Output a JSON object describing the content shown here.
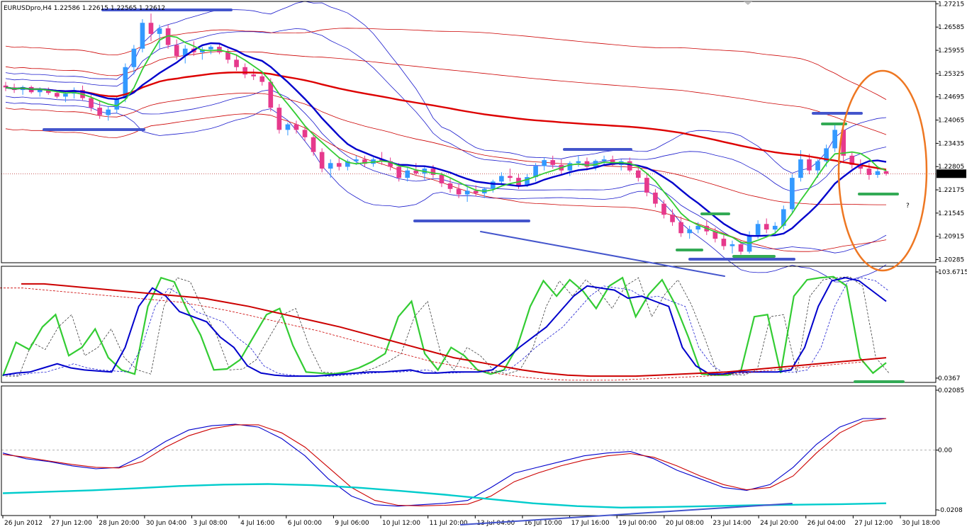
{
  "header": {
    "text": "EURUSDpro,H4  1.22586 1.22615 1.22565 1.22612"
  },
  "chart_data": [
    {
      "type": "candlestick",
      "name": "main",
      "yticks": [
        "1.27215",
        "1.26585",
        "1.25955",
        "1.25325",
        "1.24695",
        "1.24065",
        "1.23435",
        "1.22805",
        "1.22175",
        "1.21545",
        "1.20915",
        "1.20285"
      ],
      "ylim": [
        1.202,
        1.2728
      ],
      "current_price": "1.22612",
      "question_mark": "?",
      "candles": [
        [
          1.25,
          1.251,
          1.2485,
          1.2495
        ],
        [
          1.2495,
          1.2505,
          1.248,
          1.2488
        ],
        [
          1.2488,
          1.25,
          1.2475,
          1.2496
        ],
        [
          1.2496,
          1.25,
          1.2478,
          1.2482
        ],
        [
          1.2482,
          1.2495,
          1.247,
          1.249
        ],
        [
          1.249,
          1.2495,
          1.2475,
          1.248
        ],
        [
          1.248,
          1.2488,
          1.2465,
          1.247
        ],
        [
          1.247,
          1.2485,
          1.2455,
          1.2478
        ],
        [
          1.2478,
          1.2495,
          1.2465,
          1.2488
        ],
        [
          1.2488,
          1.25,
          1.246,
          1.2466
        ],
        [
          1.2466,
          1.2475,
          1.243,
          1.244
        ],
        [
          1.244,
          1.246,
          1.241,
          1.242
        ],
        [
          1.242,
          1.2445,
          1.2405,
          1.2435
        ],
        [
          1.2435,
          1.247,
          1.2425,
          1.2465
        ],
        [
          1.2465,
          1.256,
          1.2455,
          1.255
        ],
        [
          1.255,
          1.261,
          1.253,
          1.26
        ],
        [
          1.26,
          1.268,
          1.259,
          1.267
        ],
        [
          1.267,
          1.2695,
          1.262,
          1.264
        ],
        [
          1.264,
          1.2665,
          1.26,
          1.2655
        ],
        [
          1.2655,
          1.2665,
          1.26,
          1.261
        ],
        [
          1.261,
          1.2625,
          1.257,
          1.258
        ],
        [
          1.258,
          1.261,
          1.256,
          1.26
        ],
        [
          1.26,
          1.262,
          1.258,
          1.259
        ],
        [
          1.259,
          1.2605,
          1.257,
          1.2598
        ],
        [
          1.2598,
          1.261,
          1.2585,
          1.2605
        ],
        [
          1.2605,
          1.2615,
          1.2585,
          1.259
        ],
        [
          1.259,
          1.26,
          1.256,
          1.257
        ],
        [
          1.257,
          1.2585,
          1.254,
          1.255
        ],
        [
          1.255,
          1.256,
          1.252,
          1.253
        ],
        [
          1.253,
          1.2545,
          1.2515,
          1.2525
        ],
        [
          1.2525,
          1.2535,
          1.25,
          1.251
        ],
        [
          1.251,
          1.252,
          1.243,
          1.244
        ],
        [
          1.244,
          1.245,
          1.237,
          1.238
        ],
        [
          1.238,
          1.24,
          1.2365,
          1.2395
        ],
        [
          1.2395,
          1.2405,
          1.237,
          1.238
        ],
        [
          1.238,
          1.239,
          1.235,
          1.236
        ],
        [
          1.236,
          1.237,
          1.231,
          1.232
        ],
        [
          1.232,
          1.233,
          1.2265,
          1.2275
        ],
        [
          1.2275,
          1.23,
          1.225,
          1.229
        ],
        [
          1.229,
          1.2305,
          1.227,
          1.228
        ],
        [
          1.228,
          1.23,
          1.227,
          1.2295
        ],
        [
          1.2295,
          1.231,
          1.2285,
          1.23
        ],
        [
          1.23,
          1.231,
          1.228,
          1.2288
        ],
        [
          1.2288,
          1.2305,
          1.228,
          1.23
        ],
        [
          1.23,
          1.232,
          1.2285,
          1.2295
        ],
        [
          1.2295,
          1.2305,
          1.227,
          1.228
        ],
        [
          1.228,
          1.229,
          1.224,
          1.225
        ],
        [
          1.225,
          1.228,
          1.224,
          1.227
        ],
        [
          1.227,
          1.229,
          1.2255,
          1.2262
        ],
        [
          1.2262,
          1.228,
          1.2245,
          1.2275
        ],
        [
          1.2275,
          1.2285,
          1.225,
          1.2258
        ],
        [
          1.2258,
          1.2265,
          1.2225,
          1.2235
        ],
        [
          1.2235,
          1.225,
          1.221,
          1.222
        ],
        [
          1.222,
          1.2235,
          1.2195,
          1.2205
        ],
        [
          1.2205,
          1.2225,
          1.2185,
          1.2215
        ],
        [
          1.2215,
          1.223,
          1.22,
          1.2208
        ],
        [
          1.2208,
          1.2225,
          1.2195,
          1.222
        ],
        [
          1.222,
          1.2245,
          1.221,
          1.224
        ],
        [
          1.224,
          1.2265,
          1.223,
          1.2255
        ],
        [
          1.2255,
          1.2275,
          1.224,
          1.225
        ],
        [
          1.225,
          1.226,
          1.222,
          1.223
        ],
        [
          1.223,
          1.226,
          1.2225,
          1.2252
        ],
        [
          1.2252,
          1.229,
          1.224,
          1.2282
        ],
        [
          1.2282,
          1.2305,
          1.227,
          1.2298
        ],
        [
          1.2298,
          1.231,
          1.2275,
          1.2285
        ],
        [
          1.2285,
          1.23,
          1.226,
          1.227
        ],
        [
          1.227,
          1.2295,
          1.2255,
          1.229
        ],
        [
          1.229,
          1.231,
          1.228,
          1.2295
        ],
        [
          1.2295,
          1.2305,
          1.227,
          1.228
        ],
        [
          1.228,
          1.23,
          1.227,
          1.2296
        ],
        [
          1.2296,
          1.231,
          1.2285,
          1.23
        ],
        [
          1.23,
          1.231,
          1.228,
          1.2285
        ],
        [
          1.2285,
          1.23,
          1.227,
          1.2295
        ],
        [
          1.2295,
          1.2305,
          1.2265,
          1.227
        ],
        [
          1.227,
          1.228,
          1.224,
          1.225
        ],
        [
          1.225,
          1.226,
          1.22,
          1.221
        ],
        [
          1.221,
          1.222,
          1.217,
          1.218
        ],
        [
          1.218,
          1.219,
          1.214,
          1.215
        ],
        [
          1.215,
          1.2165,
          1.212,
          1.213
        ],
        [
          1.213,
          1.2145,
          1.209,
          1.21
        ],
        [
          1.21,
          1.212,
          1.2085,
          1.211
        ],
        [
          1.211,
          1.213,
          1.21,
          1.212
        ],
        [
          1.212,
          1.2135,
          1.2095,
          1.2105
        ],
        [
          1.2105,
          1.2115,
          1.2075,
          1.2085
        ],
        [
          1.2085,
          1.2095,
          1.2055,
          1.2065
        ],
        [
          1.2065,
          1.208,
          1.2045,
          1.207
        ],
        [
          1.207,
          1.208,
          1.2042,
          1.205
        ],
        [
          1.205,
          1.2105,
          1.2045,
          1.2095
        ],
        [
          1.2095,
          1.2135,
          1.2085,
          1.2125
        ],
        [
          1.2125,
          1.214,
          1.21,
          1.211
        ],
        [
          1.211,
          1.213,
          1.2095,
          1.212
        ],
        [
          1.212,
          1.2175,
          1.211,
          1.2165
        ],
        [
          1.2165,
          1.226,
          1.2155,
          1.225
        ],
        [
          1.225,
          1.2325,
          1.224,
          1.23
        ],
        [
          1.23,
          1.2315,
          1.226,
          1.227
        ],
        [
          1.227,
          1.23,
          1.225,
          1.2295
        ],
        [
          1.2295,
          1.234,
          1.228,
          1.233
        ],
        [
          1.233,
          1.2395,
          1.232,
          1.238
        ],
        [
          1.238,
          1.2385,
          1.229,
          1.231
        ],
        [
          1.231,
          1.232,
          1.2275,
          1.2285
        ],
        [
          1.2285,
          1.23,
          1.226,
          1.2275
        ],
        [
          1.2275,
          1.229,
          1.2245,
          1.2258
        ],
        [
          1.2258,
          1.2275,
          1.225,
          1.2268
        ],
        [
          1.2268,
          1.227,
          1.2256,
          1.2261
        ]
      ],
      "time_labels": [
        "26 Jun 2012",
        "27 Jun 12:00",
        "28 Jun 20:00",
        "30 Jun 04:00",
        "3 Jul 08:00",
        "4 Jul 16:00",
        "6 Jul 00:00",
        "9 Jul 06:00",
        "10 Jul 12:00",
        "11 Jul 20:00",
        "13 Jul 04:00",
        "16 Jul 10:00",
        "17 Jul 16:00",
        "19 Jul 00:00",
        "20 Jul 08:00",
        "23 Jul 14:00",
        "24 Jul 20:00",
        "26 Jul 04:00",
        "27 Jul 12:00",
        "30 Jul 18:00"
      ]
    },
    {
      "type": "line",
      "name": "stochastic",
      "yticks": [
        "103.6715",
        "0.0367"
      ],
      "ylim": [
        0,
        103.67
      ],
      "series": [
        {
          "color": "#33cc33",
          "values": [
            2,
            35,
            28,
            50,
            62,
            22,
            30,
            48,
            20,
            8,
            4,
            70,
            98,
            94,
            66,
            42,
            8,
            9,
            18,
            40,
            62,
            68,
            32,
            6,
            5,
            4,
            6,
            10,
            16,
            24,
            60,
            75,
            24,
            8,
            30,
            22,
            8,
            4,
            8,
            30,
            70,
            95,
            80,
            96,
            85,
            68,
            90,
            98,
            60,
            82,
            96,
            72,
            40,
            4,
            3,
            3,
            8,
            60,
            62,
            5,
            80,
            96,
            98,
            99,
            90,
            20,
            5,
            15
          ]
        },
        {
          "color": "#0000cc",
          "values": [
            3,
            5,
            6,
            10,
            14,
            10,
            8,
            7,
            6,
            30,
            70,
            88,
            80,
            65,
            60,
            55,
            40,
            30,
            12,
            5,
            3,
            2,
            2,
            2,
            3,
            4,
            5,
            6,
            6,
            7,
            8,
            5,
            5,
            6,
            6,
            6,
            8,
            18,
            30,
            40,
            50,
            65,
            80,
            90,
            88,
            86,
            78,
            80,
            75,
            70,
            30,
            12,
            4,
            4,
            6,
            6,
            6,
            6,
            8,
            30,
            70,
            95,
            98,
            95,
            85,
            75
          ]
        },
        {
          "color": "#cc0000",
          "values": [
            92,
            92,
            90,
            88,
            86,
            84,
            82,
            80,
            78,
            74,
            70,
            65,
            60,
            55,
            50,
            44,
            38,
            32,
            26,
            20,
            16,
            12,
            8,
            5,
            3,
            2,
            2,
            2,
            3,
            4,
            5,
            6,
            8,
            10,
            12,
            14,
            16,
            18,
            20
          ]
        }
      ]
    },
    {
      "type": "line",
      "name": "oscillator",
      "yticks": [
        "0.02085",
        "0.00",
        "-0.0208"
      ],
      "ylim": [
        -0.0208,
        0.02085
      ],
      "series": [
        {
          "color": "#0000cc",
          "values": [
            -0.001,
            -0.003,
            -0.004,
            -0.0055,
            -0.0065,
            -0.006,
            -0.002,
            0.003,
            0.007,
            0.0085,
            0.009,
            0.008,
            0.004,
            -0.002,
            -0.01,
            -0.016,
            -0.019,
            -0.0195,
            -0.019,
            -0.0185,
            -0.0175,
            -0.013,
            -0.008,
            -0.006,
            -0.004,
            -0.002,
            -0.001,
            -0.0005,
            -0.003,
            -0.007,
            -0.01,
            -0.013,
            -0.014,
            -0.012,
            -0.006,
            0.002,
            0.008,
            0.011,
            0.011
          ]
        },
        {
          "color": "#cc0000",
          "values": [
            -0.0015,
            -0.0025,
            -0.0038,
            -0.005,
            -0.006,
            -0.0062,
            -0.004,
            0.001,
            0.005,
            0.0075,
            0.0088,
            0.0088,
            0.006,
            0.001,
            -0.006,
            -0.013,
            -0.0175,
            -0.0192,
            -0.0194,
            -0.0192,
            -0.0188,
            -0.016,
            -0.011,
            -0.008,
            -0.0055,
            -0.0035,
            -0.002,
            -0.0012,
            -0.0025,
            -0.0055,
            -0.009,
            -0.012,
            -0.0138,
            -0.013,
            -0.009,
            -0.001,
            0.006,
            0.01,
            0.011
          ]
        },
        {
          "color": "#00cccc",
          "values": [
            -0.015,
            -0.0145,
            -0.014,
            -0.0133,
            -0.0125,
            -0.012,
            -0.0118,
            -0.0122,
            -0.013,
            -0.0142,
            -0.0155,
            -0.017,
            -0.0185,
            -0.0195,
            -0.02,
            -0.0198,
            -0.0195,
            -0.0192,
            -0.019,
            -0.0188,
            -0.0185
          ]
        }
      ]
    }
  ]
}
